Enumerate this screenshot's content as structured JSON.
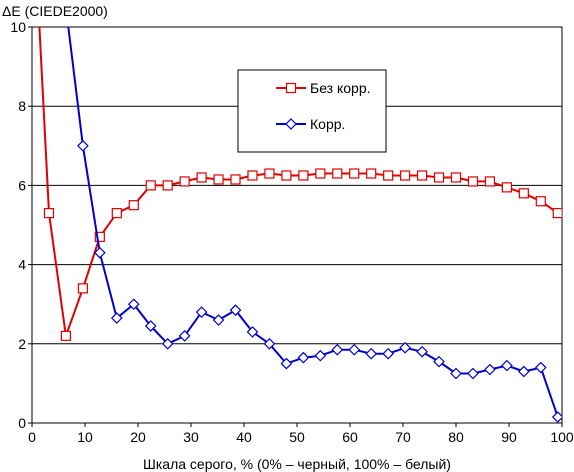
{
  "chart_data": {
    "type": "line",
    "ylabel": "ΔE (CIEDE2000)",
    "xlabel": "Шкала серого, % (0% – черный, 100% – белый)",
    "xlim": [
      0,
      100
    ],
    "ylim": [
      0,
      10
    ],
    "xticks": [
      0,
      10,
      20,
      30,
      40,
      50,
      60,
      70,
      80,
      90,
      100
    ],
    "yticks": [
      0,
      2,
      4,
      6,
      8,
      10
    ],
    "grid": "horizontal",
    "legend_position": "top-center",
    "series": [
      {
        "name": "Без корр.",
        "color": "#e00000",
        "marker": "square",
        "x": [
          1.2,
          3.2,
          6.4,
          9.6,
          12.8,
          16,
          19.2,
          22.4,
          25.6,
          28.8,
          32,
          35.2,
          38.4,
          41.6,
          44.8,
          48,
          51.2,
          54.4,
          57.6,
          60.8,
          64,
          67.2,
          70.4,
          73.6,
          76.8,
          80,
          83.2,
          86.4,
          89.6,
          92.8,
          96,
          99.2
        ],
        "y": [
          10.5,
          5.3,
          2.2,
          3.4,
          4.7,
          5.3,
          5.5,
          6.0,
          6.0,
          6.1,
          6.2,
          6.15,
          6.15,
          6.25,
          6.3,
          6.25,
          6.25,
          6.3,
          6.3,
          6.3,
          6.3,
          6.25,
          6.25,
          6.25,
          6.2,
          6.2,
          6.1,
          6.1,
          5.95,
          5.8,
          5.6,
          5.3
        ]
      },
      {
        "name": "Корр.",
        "color": "#0000cc",
        "marker": "diamond",
        "x": [
          3.4,
          6.4,
          9.6,
          12.8,
          16,
          19.2,
          22.4,
          25.6,
          28.8,
          32,
          35.2,
          38.4,
          41.6,
          44.8,
          48,
          51.2,
          54.4,
          57.6,
          60.8,
          64,
          67.2,
          70.4,
          73.6,
          76.8,
          80,
          83.2,
          86.4,
          89.6,
          92.8,
          96,
          99.2
        ],
        "y": [
          18,
          10.5,
          7.0,
          4.3,
          2.65,
          3.0,
          2.45,
          2.0,
          2.2,
          2.8,
          2.6,
          2.85,
          2.3,
          2.0,
          1.5,
          1.65,
          1.7,
          1.85,
          1.85,
          1.75,
          1.75,
          1.9,
          1.8,
          1.55,
          1.25,
          1.25,
          1.35,
          1.45,
          1.3,
          1.4,
          0.15
        ]
      }
    ]
  }
}
